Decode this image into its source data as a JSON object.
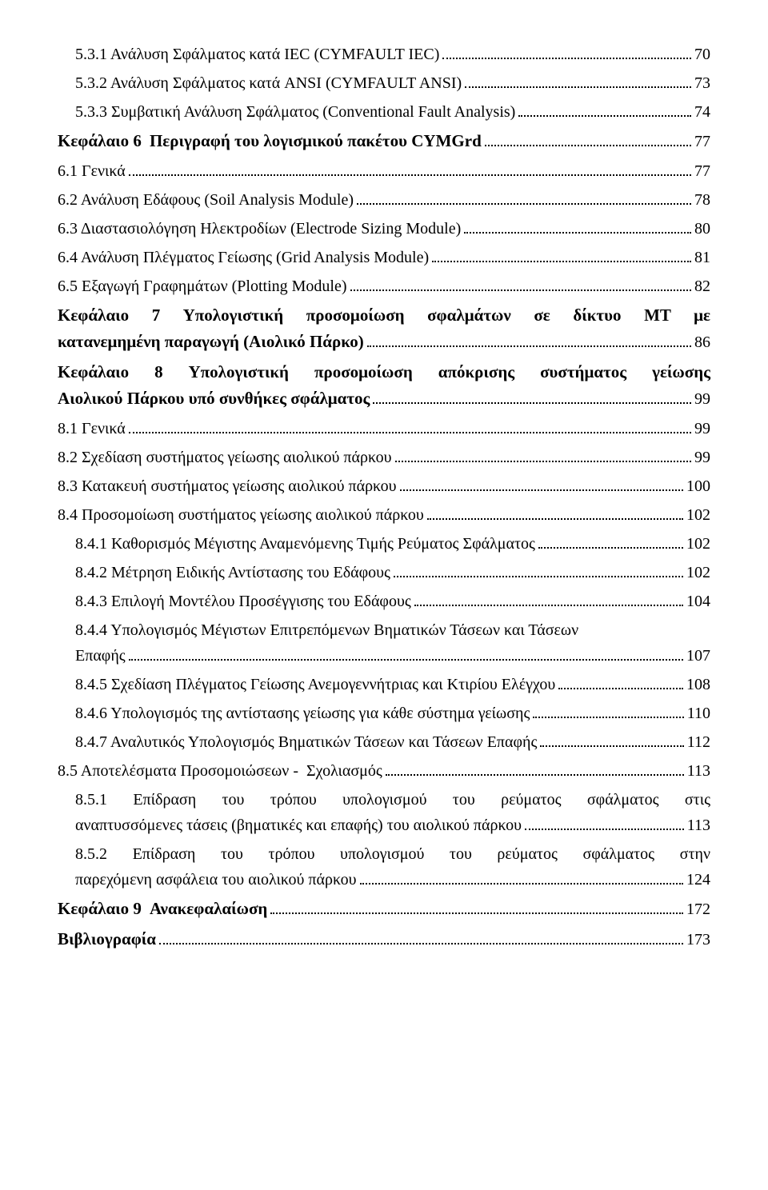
{
  "entries": [
    {
      "type": "line",
      "indent": 1,
      "label": "5.3.1 Ανάλυση Σφάλματος κατά IEC (CYMFAULT IEC)",
      "page": "70"
    },
    {
      "type": "line",
      "indent": 1,
      "label": "5.3.2 Ανάλυση Σφάλματος κατά ANSI (CYMFAULT ANSI)",
      "page": "73"
    },
    {
      "type": "line",
      "indent": 1,
      "label": "5.3.3 Συμβατική Ανάλυση Σφάλματος (Conventional Fault Analysis)",
      "page": "74"
    },
    {
      "type": "chapter",
      "chapter": "Κεφάλαιο 6",
      "title": "Περιγραφή του λογισμικού πακέτου CYMGrd",
      "page": "77"
    },
    {
      "type": "line",
      "indent": 0,
      "label": "6.1 Γενικά",
      "page": "77"
    },
    {
      "type": "line",
      "indent": 0,
      "label": "6.2 Ανάλυση Εδάφους (Soil Analysis Module)",
      "page": "78"
    },
    {
      "type": "line",
      "indent": 0,
      "label": "6.3 Διαστασιολόγηση Ηλεκτροδίων (Electrode Sizing Module)",
      "page": "80"
    },
    {
      "type": "line",
      "indent": 0,
      "label": "6.4 Ανάλυση Πλέγματος Γείωσης (Grid Analysis Module)",
      "page": "81"
    },
    {
      "type": "line",
      "indent": 0,
      "label": "6.5 Εξαγωγή Γραφημάτων (Plotting Module)",
      "page": "82"
    },
    {
      "type": "chapter_multi",
      "chapter": "Κεφάλαιο 7",
      "title_first": "Υπολογιστική προσομοίωση σφαλμάτων σε δίκτυο ΜΤ με",
      "title_last": "κατανεμημένη παραγωγή (Αιολικό Πάρκο)",
      "page": "86"
    },
    {
      "type": "chapter_multi",
      "chapter": "Κεφάλαιο 8",
      "title_first": "Υπολογιστική προσομοίωση απόκρισης συστήματος γείωσης",
      "title_last": "Αιολικού Πάρκου υπό συνθήκες σφάλματος",
      "page": "99"
    },
    {
      "type": "line",
      "indent": 0,
      "label": "8.1 Γενικά",
      "page": "99"
    },
    {
      "type": "line",
      "indent": 0,
      "label": "8.2 Σχεδίαση συστήματος γείωσης αιολικού πάρκου",
      "page": "99"
    },
    {
      "type": "line",
      "indent": 0,
      "label": "8.3 Κατακευή συστήματος γείωσης αιολικού πάρκου",
      "page": " 100"
    },
    {
      "type": "line",
      "indent": 0,
      "label": "8.4 Προσομοίωση συστήματος γείωσης αιολικού πάρκου",
      "page": " 102"
    },
    {
      "type": "line",
      "indent": 1,
      "label": "8.4.1 Καθορισμός Μέγιστης Αναμενόμενης Τιμής Ρεύματος Σφάλματος",
      "page": "102"
    },
    {
      "type": "line",
      "indent": 1,
      "label": "8.4.2 Μέτρηση Ειδικής Αντίστασης του Εδάφους",
      "page": "102"
    },
    {
      "type": "line",
      "indent": 1,
      "label": "8.4.3 Επιλογή Μοντέλου Προσέγγισης του Εδάφους",
      "page": "104"
    },
    {
      "type": "multi",
      "indent": 1,
      "first": "8.4.4 Υπολογισμός Μέγιστων Επιτρεπόμενων Βηματικών Τάσεων και Τάσεων",
      "last": "Επαφής",
      "page": "107"
    },
    {
      "type": "line",
      "indent": 1,
      "label": "8.4.5 Σχεδίαση Πλέγματος Γείωσης Ανεμογεννήτριας και Κτιρίου Ελέγχου",
      "page": "108"
    },
    {
      "type": "line",
      "indent": 1,
      "label": "8.4.6 Υπολογισμός της αντίστασης γείωσης για κάθε σύστημα γείωσης",
      "page": "110"
    },
    {
      "type": "line",
      "indent": 1,
      "label": "8.4.7 Αναλυτικός Υπολογισμός Βηματικών Τάσεων και Τάσεων Επαφής",
      "page": "112"
    },
    {
      "type": "line",
      "indent": 0,
      "label": "8.5 Αποτελέσματα Προσομοιώσεων -  Σχολιασμός",
      "page": "113"
    },
    {
      "type": "multi",
      "indent": 1,
      "first": "8.5.1 Επίδραση του τρόπου υπολογισμού του ρεύματος σφάλματος στις",
      "last": "αναπτυσσόμενες τάσεις (βηματικές και επαφής) του αιολικού πάρκου",
      "page": "113",
      "justify": true
    },
    {
      "type": "multi",
      "indent": 1,
      "first": "8.5.2 Επίδραση του τρόπου υπολογισμού του ρεύματος σφάλματος στην",
      "last": "παρεχόμενη ασφάλεια του αιολικού πάρκου",
      "page": "124",
      "justify": true
    },
    {
      "type": "chapter",
      "chapter": "Κεφάλαιο 9",
      "title": "Ανακεφαλαίωση",
      "page": "172"
    },
    {
      "type": "chapter",
      "chapter": "Βιβλιογραφία",
      "title": "",
      "page": " 173"
    }
  ]
}
